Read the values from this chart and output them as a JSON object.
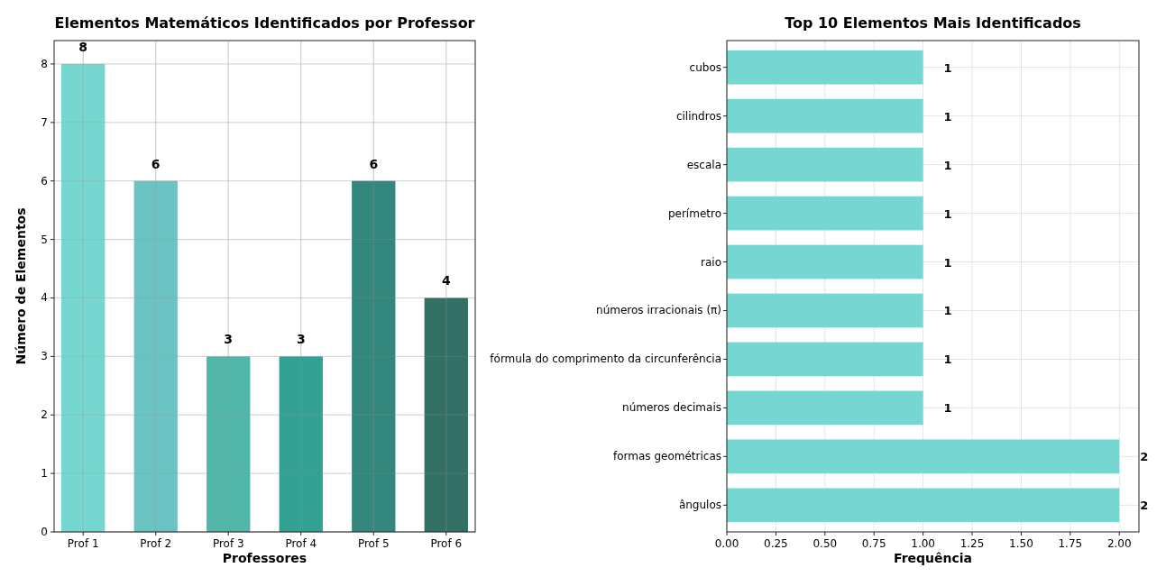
{
  "chart_data": [
    {
      "type": "bar",
      "title": "Elementos Matemáticos Identificados por Professor",
      "xlabel": "Professores",
      "ylabel": "Número de Elementos",
      "categories": [
        "Prof 1",
        "Prof 2",
        "Prof 3",
        "Prof 4",
        "Prof 5",
        "Prof 6"
      ],
      "values": [
        8,
        6,
        3,
        3,
        6,
        4
      ],
      "colors": [
        "#76d7d0",
        "#6cc3c3",
        "#52b7a9",
        "#33a193",
        "#33877c",
        "#327066"
      ],
      "ylim": [
        0,
        8.4
      ],
      "yticks": [
        0,
        1,
        2,
        3,
        4,
        5,
        6,
        7,
        8
      ],
      "grid": true,
      "data_labels": true
    },
    {
      "type": "bar",
      "orientation": "horizontal",
      "title": "Top 10 Elementos Mais Identificados",
      "xlabel": "Frequência",
      "categories": [
        "cubos",
        "cilindros",
        "escala",
        "perímetro",
        "raio",
        "números irracionais (π)",
        "fórmula do comprimento da circunferência",
        "números decimais",
        "formas geométricas",
        "ângulos"
      ],
      "values": [
        1,
        1,
        1,
        1,
        1,
        1,
        1,
        1,
        2,
        2
      ],
      "color": "#76d7d2",
      "xlim": [
        0,
        2.1
      ],
      "xticks": [
        {
          "value": 0,
          "label": "0.00"
        },
        {
          "value": 0.25,
          "label": "0.25"
        },
        {
          "value": 0.5,
          "label": "0.50"
        },
        {
          "value": 0.75,
          "label": "0.75"
        },
        {
          "value": 1,
          "label": "1.00"
        },
        {
          "value": 1.25,
          "label": "1.25"
        },
        {
          "value": 1.5,
          "label": "1.50"
        },
        {
          "value": 1.75,
          "label": "1.75"
        },
        {
          "value": 2,
          "label": "2.00"
        }
      ],
      "grid": true,
      "data_labels": true
    }
  ]
}
